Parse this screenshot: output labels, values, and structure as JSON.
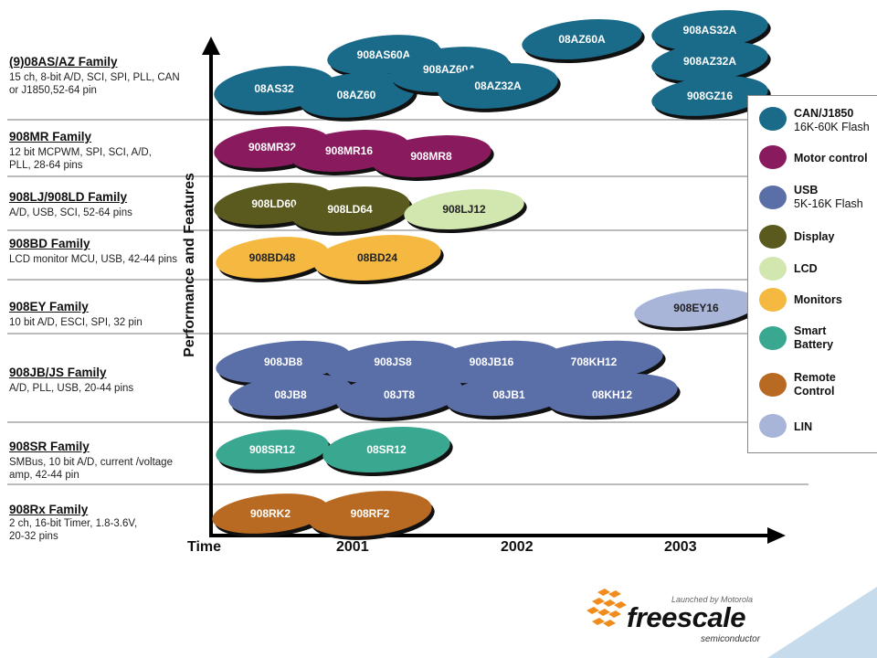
{
  "colors": {
    "can": "#1a6a8a",
    "motor": "#8a1a5e",
    "usb": "#5a6ea8",
    "display": "#5a5a1e",
    "lcd": "#d2e6b0",
    "monitors": "#f5b942",
    "smart_battery": "#3aa890",
    "remote": "#b86a22",
    "lin": "#a8b4d8"
  },
  "families": [
    {
      "title": "(9)08AS/AZ Family",
      "desc": "15 ch, 8-bit A/D, SCI, SPI, PLL, CAN or J1850,52-64 pin"
    },
    {
      "title": "908MR Family",
      "desc": "12 bit MCPWM, SPI, SCI, A/D, PLL, 28-64 pins"
    },
    {
      "title": "908LJ/908LD Family",
      "desc": "A/D, USB, SCI, 52-64 pins"
    },
    {
      "title": "908BD Family",
      "desc": "LCD monitor MCU, USB, 42-44 pins"
    },
    {
      "title": "908EY Family",
      "desc": "10 bit A/D, ESCI, SPI, 32 pin"
    },
    {
      "title": "908JB/JS Family",
      "desc": "A/D, PLL, USB, 20-44 pins"
    },
    {
      "title": "908SR Family",
      "desc": "SMBus, 10 bit A/D, current /voltage amp, 42-44 pin"
    },
    {
      "title": "908Rx Family",
      "desc": "2 ch, 16-bit Timer, 1.8-3.6V, 20-32 pins"
    }
  ],
  "axis": {
    "y_label": "Performance and Features",
    "x_label": "Time",
    "years": [
      "2001",
      "2002",
      "2003"
    ]
  },
  "chips": [
    {
      "label": "08AS32",
      "color": "can"
    },
    {
      "label": "908AS60A",
      "color": "can"
    },
    {
      "label": "08AZ60",
      "color": "can"
    },
    {
      "label": "908AZ60A",
      "color": "can"
    },
    {
      "label": "08AZ32A",
      "color": "can"
    },
    {
      "label": "08AZ60A",
      "color": "can"
    },
    {
      "label": "908AS32A",
      "color": "can"
    },
    {
      "label": "908AZ32A",
      "color": "can"
    },
    {
      "label": "908GZ16",
      "color": "can"
    },
    {
      "label": "908MR32",
      "color": "motor"
    },
    {
      "label": "908MR16",
      "color": "motor"
    },
    {
      "label": "908MR8",
      "color": "motor"
    },
    {
      "label": "908LD60",
      "color": "display"
    },
    {
      "label": "908LD64",
      "color": "display"
    },
    {
      "label": "908LJ12",
      "color": "lcd"
    },
    {
      "label": "908BD48",
      "color": "monitors"
    },
    {
      "label": "08BD24",
      "color": "monitors"
    },
    {
      "label": "908EY16",
      "color": "lin"
    },
    {
      "label": "908JB8",
      "color": "usb"
    },
    {
      "label": "908JS8",
      "color": "usb"
    },
    {
      "label": "908JB16",
      "color": "usb"
    },
    {
      "label": "708KH12",
      "color": "usb"
    },
    {
      "label": "08JB8",
      "color": "usb"
    },
    {
      "label": "08JT8",
      "color": "usb"
    },
    {
      "label": "08JB1",
      "color": "usb"
    },
    {
      "label": "08KH12",
      "color": "usb"
    },
    {
      "label": "908SR12",
      "color": "smart_battery"
    },
    {
      "label": "08SR12",
      "color": "smart_battery"
    },
    {
      "label": "908RK2",
      "color": "remote"
    },
    {
      "label": "908RF2",
      "color": "remote"
    }
  ],
  "legend": [
    {
      "label": "CAN/J1850",
      "sub": "16K-60K Flash",
      "color": "can"
    },
    {
      "label": "Motor control",
      "sub": "",
      "color": "motor"
    },
    {
      "label": "USB",
      "sub": "5K-16K Flash",
      "color": "usb"
    },
    {
      "label": "Display",
      "sub": "",
      "color": "display"
    },
    {
      "label": "LCD",
      "sub": "",
      "color": "lcd"
    },
    {
      "label": "Monitors",
      "sub": "",
      "color": "monitors"
    },
    {
      "label": "Smart",
      "sub": "Battery",
      "color": "smart_battery"
    },
    {
      "label": "Remote",
      "sub": "Control",
      "color": "remote"
    },
    {
      "label": "LIN",
      "sub": "",
      "color": "lin"
    }
  ],
  "logo": {
    "tagline": "Launched by Motorola",
    "name": "freescale",
    "sub": "semiconductor"
  }
}
